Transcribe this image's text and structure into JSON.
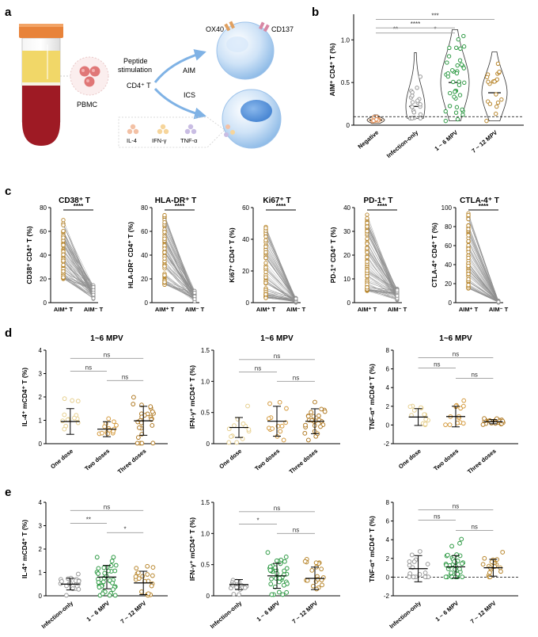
{
  "panels": {
    "a": "a",
    "b": "b",
    "c": "c",
    "d": "d",
    "e": "e"
  },
  "schematic": {
    "pbmc": "PBMC",
    "peptide_line1": "Peptide",
    "peptide_line2": "stimulation",
    "cd4": "CD4⁺ T",
    "aim": "AIM",
    "ics": "ICS",
    "ox40": "OX40",
    "cd137": "CD137",
    "il4": "IL-4",
    "ifng": "IFN-γ",
    "tnfa": "TNF-α"
  },
  "colors": {
    "grey": "#9a9a9a",
    "green": "#2e9a44",
    "gold": "#b8862c",
    "orange": "#e08a50",
    "cellBlue": "#9fc6ec",
    "blood": "#9e1a24",
    "serum": "#f1d768",
    "cap": "#e8833a"
  },
  "chart_data": [
    {
      "id": "b",
      "type": "violin",
      "ylabel": "AIM⁺ CD4⁺ T (%)",
      "ylim": [
        0,
        1.3
      ],
      "yticks": [
        0,
        0.5,
        1.0
      ],
      "ytick_labels": [
        "0",
        "0.5",
        "1.0"
      ],
      "categories": [
        "Negative",
        "Infection-only",
        "1 ~ 6 MPV",
        "7 ~ 12 MPV"
      ],
      "colors": [
        "#e08a50",
        "#9a9a9a",
        "#2e9a44",
        "#b8862c"
      ],
      "medians": [
        0.06,
        0.22,
        0.5,
        0.38
      ],
      "dashed_line": 0.1,
      "brackets": [
        {
          "from": 1,
          "to": 2,
          "label": "**",
          "y": 1.08
        },
        {
          "from": 2,
          "to": 3,
          "label": "*",
          "y": 1.08
        },
        {
          "from": 1,
          "to": 3,
          "label": "****",
          "y": 1.14
        },
        {
          "from": 1,
          "to": 4,
          "label": "***",
          "y": 1.24
        }
      ]
    },
    {
      "id": "c1",
      "type": "paired",
      "title": "CD38⁺ T",
      "ylabel": "CD38⁺ CD4⁺ T (%)",
      "ylim": [
        0,
        80
      ],
      "yticks": [
        0,
        20,
        40,
        60,
        80
      ],
      "ytick_labels": [
        "0",
        "20",
        "40",
        "60",
        "80"
      ],
      "categories": [
        "AIM⁺ T",
        "AIM⁻ T"
      ],
      "sig": "****",
      "before_range": [
        20,
        70
      ],
      "after_range": [
        3,
        15
      ]
    },
    {
      "id": "c2",
      "type": "paired",
      "title": "HLA-DR⁺ T",
      "ylabel": "HLA-DR⁺ CD4⁺ T (%)",
      "ylim": [
        0,
        80
      ],
      "yticks": [
        0,
        20,
        40,
        60,
        80
      ],
      "ytick_labels": [
        "0",
        "20",
        "40",
        "60",
        "80"
      ],
      "categories": [
        "AIM⁺ T",
        "AIM⁻ T"
      ],
      "sig": "****",
      "before_range": [
        15,
        74
      ],
      "after_range": [
        1,
        10
      ]
    },
    {
      "id": "c3",
      "type": "paired",
      "title": "Ki67⁺ T",
      "ylabel": "Ki67⁺ CD4⁺ T (%)",
      "ylim": [
        0,
        60
      ],
      "yticks": [
        0,
        20,
        40,
        60
      ],
      "ytick_labels": [
        "0",
        "20",
        "40",
        "60"
      ],
      "categories": [
        "AIM⁺ T",
        "AIM⁻ T"
      ],
      "sig": "****",
      "before_range": [
        3,
        50
      ],
      "after_range": [
        0,
        3
      ]
    },
    {
      "id": "c4",
      "type": "paired",
      "title": "PD-1⁺ T",
      "ylabel": "PD-1⁺ CD4⁺ T (%)",
      "ylim": [
        0,
        40
      ],
      "yticks": [
        0,
        10,
        20,
        30,
        40
      ],
      "ytick_labels": [
        "0",
        "10",
        "20",
        "30",
        "40"
      ],
      "categories": [
        "AIM⁺ T",
        "AIM⁻ T"
      ],
      "sig": "****",
      "before_range": [
        5,
        38
      ],
      "after_range": [
        1,
        6
      ]
    },
    {
      "id": "c5",
      "type": "paired",
      "title": "CTLA-4⁺ T",
      "ylabel": "CTLA-4⁺ CD4⁺ T (%)",
      "ylim": [
        0,
        100
      ],
      "yticks": [
        0,
        20,
        40,
        60,
        80,
        100
      ],
      "ytick_labels": [
        "0",
        "20",
        "40",
        "60",
        "80",
        "100"
      ],
      "categories": [
        "AIM⁺ T",
        "AIM⁻ T"
      ],
      "sig": "****",
      "before_range": [
        15,
        95
      ],
      "after_range": [
        0,
        2
      ]
    },
    {
      "id": "d1",
      "type": "scatter_dot",
      "title": "1~6 MPV",
      "ylabel": "IL-4⁺ mCD4⁺ T (%)",
      "ylim": [
        0,
        4
      ],
      "yticks": [
        0,
        1,
        2,
        3,
        4
      ],
      "ytick_labels": [
        "0",
        "1",
        "2",
        "3",
        "4"
      ],
      "categories": [
        "One dose",
        "Two doses",
        "Three doses"
      ],
      "colors": [
        "#e6cf8e",
        "#d49a3e",
        "#b07a24"
      ],
      "means": [
        0.95,
        0.62,
        0.98
      ],
      "sds": [
        0.55,
        0.32,
        0.62
      ],
      "counts": [
        13,
        14,
        26
      ],
      "brackets": [
        {
          "from": 1,
          "to": 2,
          "label": "ns",
          "y": 3.1
        },
        {
          "from": 2,
          "to": 3,
          "label": "ns",
          "y": 2.7
        },
        {
          "from": 1,
          "to": 3,
          "label": "ns",
          "y": 3.65
        }
      ]
    },
    {
      "id": "d2",
      "type": "scatter_dot",
      "title": "1~6 MPV",
      "ylabel": "IFN-γ⁺ mCD4⁺ T (%)",
      "ylim": [
        0,
        1.5
      ],
      "yticks": [
        0,
        0.5,
        1.0,
        1.5
      ],
      "ytick_labels": [
        "0",
        "0.5",
        "1.0",
        "1.5"
      ],
      "categories": [
        "One dose",
        "Two doses",
        "Three doses"
      ],
      "colors": [
        "#e6cf8e",
        "#d49a3e",
        "#b07a24"
      ],
      "means": [
        0.26,
        0.36,
        0.36
      ],
      "sds": [
        0.16,
        0.24,
        0.2
      ],
      "counts": [
        13,
        14,
        26
      ],
      "brackets": [
        {
          "from": 1,
          "to": 2,
          "label": "ns",
          "y": 1.15
        },
        {
          "from": 2,
          "to": 3,
          "label": "ns",
          "y": 1.0
        },
        {
          "from": 1,
          "to": 3,
          "label": "ns",
          "y": 1.35
        }
      ]
    },
    {
      "id": "d3",
      "type": "scatter_dot",
      "title": "1~6 MPV",
      "ylabel": "TNF-α⁺ mCD4⁺ T (%)",
      "ylim": [
        -2,
        8
      ],
      "yticks": [
        -2,
        0,
        2,
        4,
        6,
        8
      ],
      "ytick_labels": [
        "-2",
        "0",
        "2",
        "4",
        "6",
        "8"
      ],
      "categories": [
        "One dose",
        "Two doses",
        "Three doses"
      ],
      "colors": [
        "#e6cf8e",
        "#d49a3e",
        "#b07a24"
      ],
      "means": [
        0.85,
        0.9,
        0.35
      ],
      "sds": [
        0.9,
        1.1,
        0.22
      ],
      "counts": [
        13,
        14,
        26
      ],
      "brackets": [
        {
          "from": 1,
          "to": 2,
          "label": "ns",
          "y": 6.1
        },
        {
          "from": 2,
          "to": 3,
          "label": "ns",
          "y": 5.0
        },
        {
          "from": 1,
          "to": 3,
          "label": "ns",
          "y": 7.2
        }
      ]
    },
    {
      "id": "e1",
      "type": "scatter_dot",
      "ylabel": "IL-4⁺ mCD4⁺ T (%)",
      "ylim": [
        0,
        4
      ],
      "yticks": [
        0,
        1,
        2,
        3,
        4
      ],
      "ytick_labels": [
        "0",
        "1",
        "2",
        "3",
        "4"
      ],
      "categories": [
        "Infection-only",
        "1 ~ 6 MPV",
        "7 ~ 12 MPV"
      ],
      "colors": [
        "#9a9a9a",
        "#2e9a44",
        "#b8862c"
      ],
      "means": [
        0.5,
        0.8,
        0.55
      ],
      "sds": [
        0.25,
        0.5,
        0.5
      ],
      "counts": [
        20,
        40,
        20
      ],
      "brackets": [
        {
          "from": 1,
          "to": 2,
          "label": "**",
          "y": 3.1
        },
        {
          "from": 2,
          "to": 3,
          "label": "*",
          "y": 2.7
        },
        {
          "from": 1,
          "to": 3,
          "label": "ns",
          "y": 3.65
        }
      ]
    },
    {
      "id": "e2",
      "type": "scatter_dot",
      "ylabel": "IFN-γ⁺ mCD4⁺ T (%)",
      "ylim": [
        0,
        1.5
      ],
      "yticks": [
        0,
        0.5,
        1.0,
        1.5
      ],
      "ytick_labels": [
        "0",
        "0.5",
        "1.0",
        "1.5"
      ],
      "categories": [
        "Infection-only",
        "1 ~ 6 MPV",
        "7 ~ 12 MPV"
      ],
      "colors": [
        "#9a9a9a",
        "#2e9a44",
        "#b8862c"
      ],
      "means": [
        0.18,
        0.32,
        0.28
      ],
      "sds": [
        0.08,
        0.2,
        0.18
      ],
      "counts": [
        20,
        40,
        20
      ],
      "brackets": [
        {
          "from": 1,
          "to": 2,
          "label": "*",
          "y": 1.15
        },
        {
          "from": 2,
          "to": 3,
          "label": "ns",
          "y": 1.0
        },
        {
          "from": 1,
          "to": 3,
          "label": "ns",
          "y": 1.35
        }
      ]
    },
    {
      "id": "e3",
      "type": "scatter_dot",
      "ylabel": "TNF-α⁺ mCD4⁺ T (%)",
      "ylim": [
        -2,
        8
      ],
      "yticks": [
        -2,
        0,
        2,
        4,
        6,
        8
      ],
      "ytick_labels": [
        "-2",
        "0",
        "2",
        "4",
        "6",
        "8"
      ],
      "categories": [
        "Infection-only",
        "1 ~ 6 MPV",
        "7 ~ 12 MPV"
      ],
      "colors": [
        "#9a9a9a",
        "#2e9a44",
        "#b8862c"
      ],
      "means": [
        0.9,
        1.1,
        1.0
      ],
      "sds": [
        1.4,
        1.2,
        0.9
      ],
      "counts": [
        20,
        40,
        20
      ],
      "dashed_line": 0,
      "brackets": [
        {
          "from": 1,
          "to": 2,
          "label": "ns",
          "y": 6.1
        },
        {
          "from": 2,
          "to": 3,
          "label": "ns",
          "y": 5.0
        },
        {
          "from": 1,
          "to": 3,
          "label": "ns",
          "y": 7.2
        }
      ]
    }
  ]
}
